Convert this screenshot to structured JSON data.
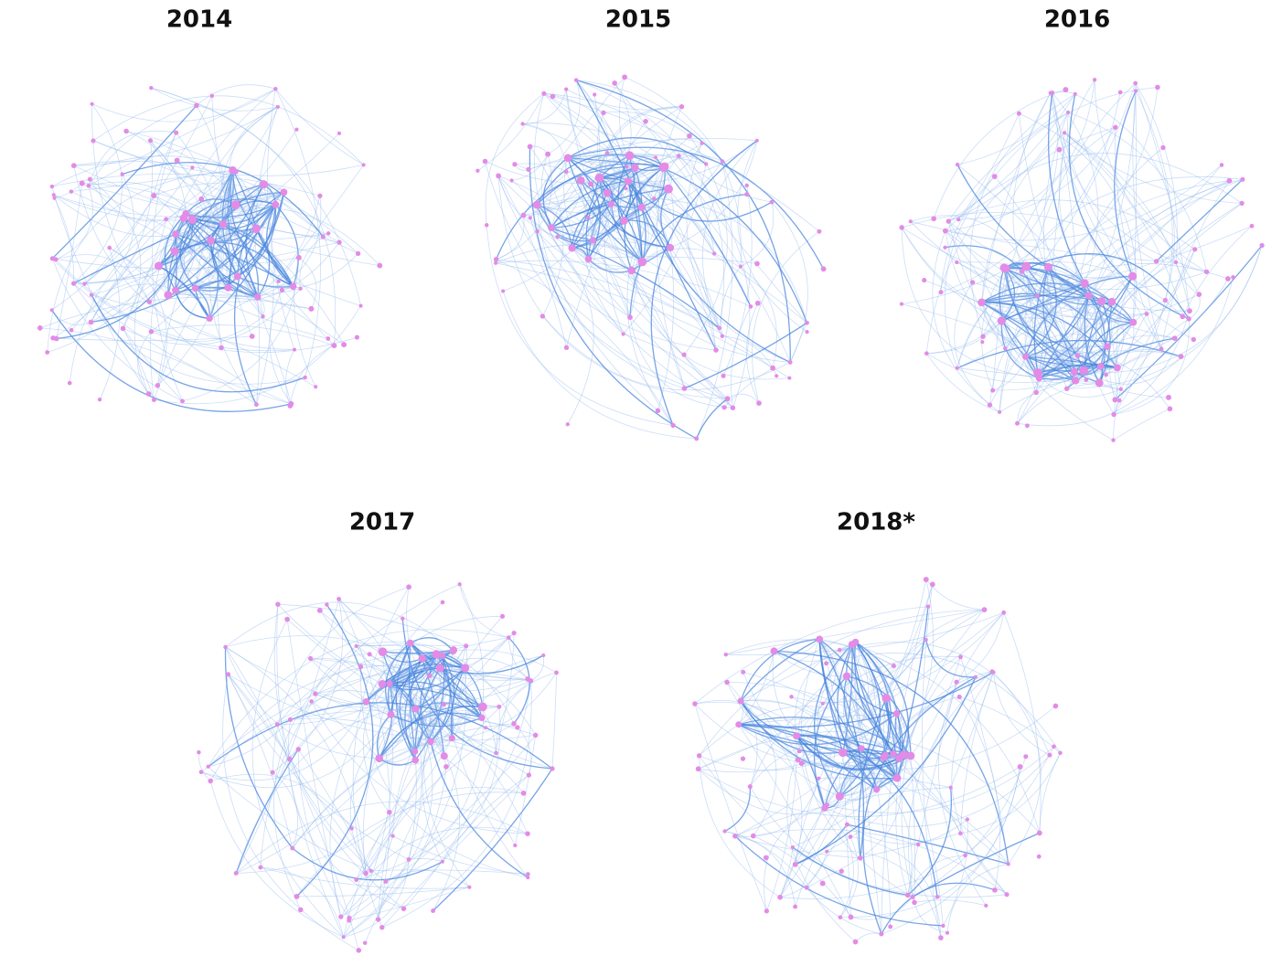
{
  "panels": [
    {
      "title": "2014"
    },
    {
      "title": "2015"
    },
    {
      "title": "2016"
    },
    {
      "title": "2017"
    },
    {
      "title": "2018*"
    }
  ]
}
